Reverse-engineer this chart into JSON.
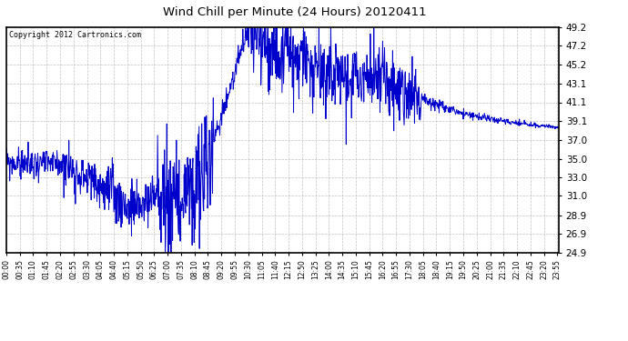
{
  "title": "Wind Chill per Minute (24 Hours) 20120411",
  "copyright_text": "Copyright 2012 Cartronics.com",
  "line_color": "#0000cc",
  "background_color": "#ffffff",
  "grid_color": "#aaaaaa",
  "yticks": [
    24.9,
    26.9,
    28.9,
    31.0,
    33.0,
    35.0,
    37.0,
    39.1,
    41.1,
    43.1,
    45.2,
    47.2,
    49.2
  ],
  "ymin": 24.9,
  "ymax": 49.2,
  "total_minutes": 1440,
  "xtick_labels": [
    "00:00",
    "00:35",
    "01:10",
    "01:45",
    "02:20",
    "02:55",
    "03:30",
    "04:05",
    "04:40",
    "05:15",
    "05:50",
    "06:25",
    "07:00",
    "07:35",
    "08:10",
    "08:45",
    "09:20",
    "09:55",
    "10:30",
    "11:05",
    "11:40",
    "12:15",
    "12:50",
    "13:25",
    "14:00",
    "14:35",
    "15:10",
    "15:45",
    "16:20",
    "16:55",
    "17:30",
    "18:05",
    "18:40",
    "19:15",
    "19:50",
    "20:25",
    "21:00",
    "21:35",
    "22:10",
    "22:45",
    "23:20",
    "23:55"
  ],
  "xtick_positions_minutes": [
    0,
    35,
    70,
    105,
    140,
    175,
    210,
    245,
    280,
    315,
    350,
    385,
    420,
    455,
    490,
    525,
    560,
    595,
    630,
    665,
    700,
    735,
    770,
    805,
    840,
    875,
    910,
    945,
    980,
    1015,
    1050,
    1085,
    1120,
    1155,
    1190,
    1225,
    1260,
    1295,
    1330,
    1365,
    1400,
    1435
  ],
  "base_curve": {
    "segments": [
      {
        "t0": 0,
        "t1": 150,
        "v0": 34.5,
        "v1": 34.5
      },
      {
        "t0": 150,
        "t1": 265,
        "v0": 34.5,
        "v1": 31.5
      },
      {
        "t0": 265,
        "t1": 330,
        "v0": 31.5,
        "v1": 29.5
      },
      {
        "t0": 330,
        "t1": 390,
        "v0": 29.5,
        "v1": 31.0
      },
      {
        "t0": 390,
        "t1": 450,
        "v0": 31.0,
        "v1": 30.5
      },
      {
        "t0": 450,
        "t1": 500,
        "v0": 30.5,
        "v1": 31.5
      },
      {
        "t0": 500,
        "t1": 630,
        "v0": 31.5,
        "v1": 49.0
      },
      {
        "t0": 630,
        "t1": 665,
        "v0": 49.0,
        "v1": 47.5
      },
      {
        "t0": 665,
        "t1": 810,
        "v0": 47.5,
        "v1": 44.5
      },
      {
        "t0": 810,
        "t1": 960,
        "v0": 44.5,
        "v1": 43.5
      },
      {
        "t0": 960,
        "t1": 1020,
        "v0": 43.5,
        "v1": 42.5
      },
      {
        "t0": 1020,
        "t1": 1080,
        "v0": 42.5,
        "v1": 41.5
      },
      {
        "t0": 1080,
        "t1": 1140,
        "v0": 41.5,
        "v1": 40.5
      },
      {
        "t0": 1140,
        "t1": 1200,
        "v0": 40.5,
        "v1": 39.8
      },
      {
        "t0": 1200,
        "t1": 1260,
        "v0": 39.8,
        "v1": 39.3
      },
      {
        "t0": 1260,
        "t1": 1320,
        "v0": 39.3,
        "v1": 38.9
      },
      {
        "t0": 1320,
        "t1": 1380,
        "v0": 38.9,
        "v1": 38.6
      },
      {
        "t0": 1380,
        "t1": 1440,
        "v0": 38.6,
        "v1": 38.4
      }
    ]
  },
  "noise_segments": [
    {
      "t0": 0,
      "t1": 150,
      "std": 0.8
    },
    {
      "t0": 150,
      "t1": 265,
      "std": 1.2
    },
    {
      "t0": 265,
      "t1": 330,
      "std": 1.5
    },
    {
      "t0": 330,
      "t1": 390,
      "std": 1.2
    },
    {
      "t0": 390,
      "t1": 450,
      "std": 3.5
    },
    {
      "t0": 450,
      "t1": 500,
      "std": 3.0
    },
    {
      "t0": 500,
      "t1": 540,
      "std": 3.5
    },
    {
      "t0": 540,
      "t1": 630,
      "std": 0.6
    },
    {
      "t0": 630,
      "t1": 665,
      "std": 2.5
    },
    {
      "t0": 665,
      "t1": 810,
      "std": 2.2
    },
    {
      "t0": 810,
      "t1": 960,
      "std": 2.0
    },
    {
      "t0": 960,
      "t1": 1080,
      "std": 1.8
    },
    {
      "t0": 1080,
      "t1": 1140,
      "std": 0.3
    },
    {
      "t0": 1140,
      "t1": 1200,
      "std": 0.2
    },
    {
      "t0": 1200,
      "t1": 1260,
      "std": 0.2
    },
    {
      "t0": 1260,
      "t1": 1320,
      "std": 0.15
    },
    {
      "t0": 1320,
      "t1": 1380,
      "std": 0.15
    },
    {
      "t0": 1380,
      "t1": 1440,
      "std": 0.1
    }
  ]
}
